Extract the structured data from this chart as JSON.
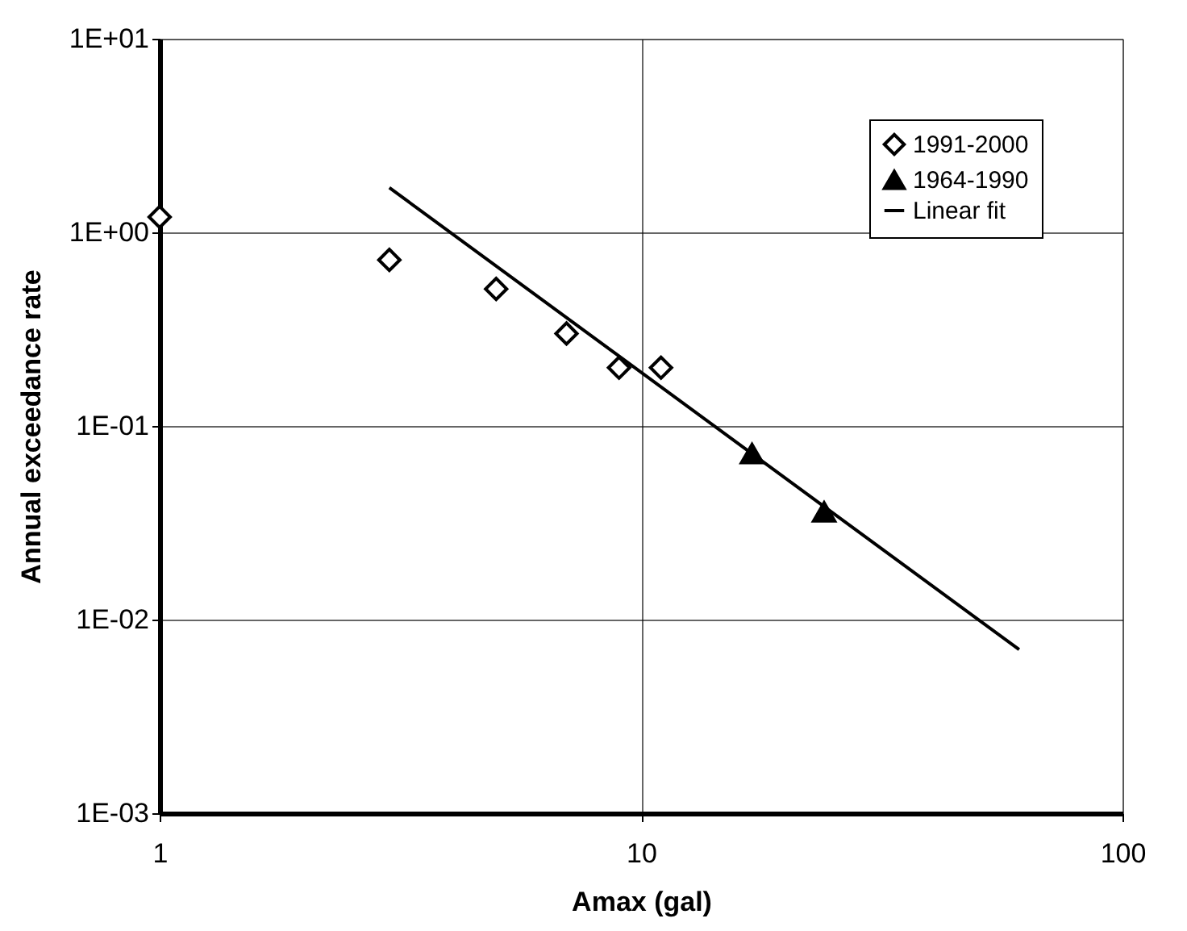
{
  "chart_data": {
    "type": "scatter",
    "xlabel": "Amax (gal)",
    "ylabel": "Annual exceedance rate",
    "log": "xy",
    "grid": true,
    "legend": "top right",
    "xlim": [
      1,
      100
    ],
    "xticks": [
      1,
      10,
      100
    ],
    "ylim": [
      0.001,
      10
    ],
    "yticks": [
      {
        "value": 0.001,
        "label": "1E-03"
      },
      {
        "value": 0.01,
        "label": "1E-02"
      },
      {
        "value": 0.1,
        "label": "1E-01"
      },
      {
        "value": 1,
        "label": "1E+00"
      },
      {
        "value": 10,
        "label": "1E+01"
      }
    ],
    "series": [
      {
        "name": "1991-2000",
        "marker": "diamond",
        "color": "#000000",
        "x": [
          1,
          3,
          5,
          7,
          9,
          11
        ],
        "values": [
          1.2,
          0.72,
          0.51,
          0.3,
          0.2,
          0.2
        ]
      },
      {
        "name": "1964-1990",
        "marker": "triangle",
        "color": "#000000",
        "x": [
          17,
          24
        ],
        "values": [
          0.072,
          0.036
        ]
      },
      {
        "name": "Linear fit",
        "type": "line",
        "color": "#000000",
        "x": [
          3,
          61
        ],
        "values": [
          1.7,
          0.007
        ]
      }
    ]
  }
}
